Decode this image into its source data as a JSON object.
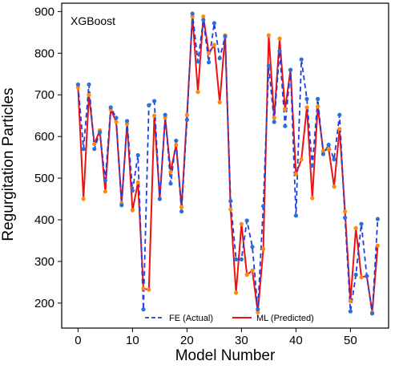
{
  "chart_data": {
    "type": "line",
    "annotation": "XGBoost",
    "xlabel": "Model Number",
    "ylabel": "Regurgitation Particles",
    "xlim": [
      -3,
      57
    ],
    "ylim": [
      140,
      920
    ],
    "xticks": [
      0,
      10,
      20,
      30,
      40,
      50
    ],
    "yticks": [
      200,
      300,
      400,
      500,
      600,
      700,
      800,
      900
    ],
    "grid": false,
    "legend_position": "bottom-center",
    "x": [
      0,
      1,
      2,
      3,
      4,
      5,
      6,
      7,
      8,
      9,
      10,
      11,
      12,
      13,
      14,
      15,
      16,
      17,
      18,
      19,
      20,
      21,
      22,
      23,
      24,
      25,
      26,
      27,
      28,
      29,
      30,
      31,
      32,
      33,
      34,
      35,
      36,
      37,
      38,
      39,
      40,
      41,
      42,
      43,
      44,
      45,
      46,
      47,
      48,
      49,
      50,
      51,
      52,
      53,
      54,
      55
    ],
    "series": [
      {
        "name": "FE (Actual)",
        "color": "#1f3fe0",
        "marker_color": "#2a70d8",
        "style": "dashed",
        "values": [
          725,
          570,
          725,
          570,
          610,
          495,
          670,
          645,
          435,
          637,
          470,
          555,
          185,
          675,
          685,
          450,
          652,
          487,
          590,
          420,
          640,
          895,
          780,
          880,
          778,
          872,
          788,
          840,
          445,
          305,
          305,
          398,
          335,
          185,
          433,
          770,
          635,
          805,
          625,
          760,
          410,
          785,
          690,
          530,
          690,
          558,
          580,
          545,
          652,
          405,
          180,
          268,
          390,
          265,
          175,
          402
        ]
      },
      {
        "name": "ML (Predicted)",
        "color": "#ee1111",
        "marker_color": "#ff8a10",
        "style": "solid",
        "values": [
          718,
          450,
          700,
          582,
          615,
          468,
          665,
          635,
          440,
          630,
          423,
          490,
          235,
          232,
          650,
          450,
          645,
          515,
          580,
          430,
          652,
          888,
          707,
          888,
          800,
          820,
          682,
          843,
          425,
          225,
          390,
          268,
          278,
          178,
          330,
          843,
          645,
          835,
          665,
          760,
          510,
          545,
          670,
          452,
          672,
          565,
          570,
          480,
          618,
          420,
          205,
          380,
          262,
          265,
          178,
          338
        ]
      }
    ]
  }
}
